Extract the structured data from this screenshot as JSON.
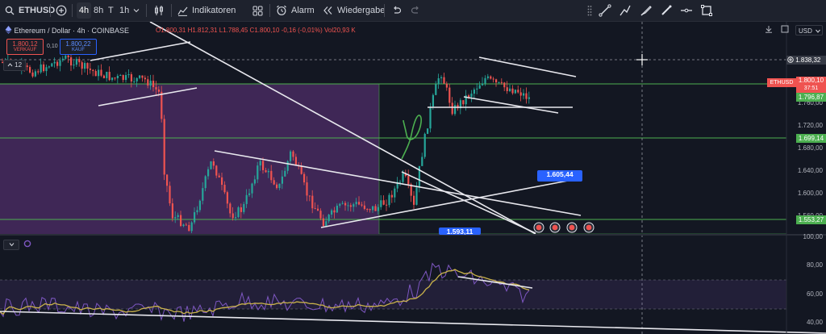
{
  "toolbar": {
    "symbol": "ETHUSD",
    "intervals": [
      "4h",
      "8h",
      "T",
      "1h"
    ],
    "indicators_label": "Indikatoren",
    "alarm_label": "Alarm",
    "replay_label": "Wiedergabe"
  },
  "legend": {
    "title": "Ethereum / Dollar · 4h · COINBASE",
    "ohlc": "O1.800,31 H1.812,31 L1.788,45 C1.800,10 -0,16 (-0,01%) Vol20,93 K",
    "sell_price": "1.800,12",
    "sell_label": "VERKAUF",
    "spread": "0,10",
    "buy_price": "1.800,22",
    "buy_label": "KAUF",
    "collapsed_count": "12"
  },
  "price_scale": {
    "currency": "USD",
    "labels": [
      "1.760,00",
      "1.720,00",
      "1.680,00",
      "1.640,00",
      "1.600,00",
      "1.560,00"
    ],
    "crosshair_price": "1.838,32",
    "symbol_tag": "ETHUSD",
    "current_price": "1.800,10",
    "countdown": "37:51",
    "level_tags": [
      "1.796,87",
      "1.699,14",
      "1.553,27"
    ]
  },
  "chart_labels": {
    "box_a": "1.605,44",
    "box_b": "1.593,11"
  },
  "oscillator": {
    "scale": [
      "100,00",
      "80,00",
      "60,00",
      "40,00"
    ]
  },
  "colors": {
    "bull": "#26a69a",
    "bear": "#ef5350",
    "level": "#4caf50",
    "zone": "#7b3fa0",
    "rsi": "#7e57c2",
    "ma": "#c9b24a",
    "accent": "#2962ff"
  }
}
